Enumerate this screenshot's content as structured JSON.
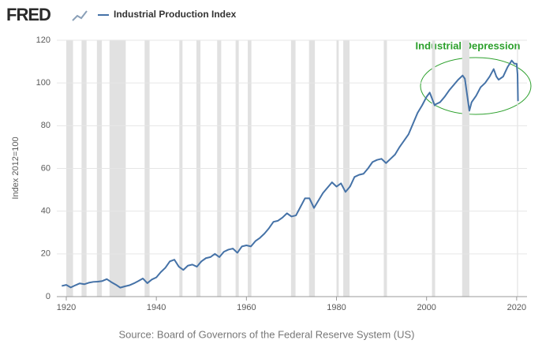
{
  "chart_data": {
    "type": "line",
    "logo": "FRED",
    "y_label": "Index 2012=100",
    "source": "Source: Board of Governors of the Federal Reserve System (US)",
    "annotation": "Industrial Depression",
    "xlim": [
      1917.9,
      2022.3
    ],
    "xticks": [
      1920,
      1940,
      1960,
      1980,
      2000,
      2020
    ],
    "ylim": [
      0,
      120
    ],
    "yticks": [
      0,
      20,
      40,
      60,
      80,
      100,
      120
    ],
    "grid": true,
    "shade_color": "#e1e1e1",
    "shaded_periods": [
      [
        1920.0,
        1921.5
      ],
      [
        1923.4,
        1924.5
      ],
      [
        1926.8,
        1927.9
      ],
      [
        1929.6,
        1933.2
      ],
      [
        1937.4,
        1938.5
      ],
      [
        1945.1,
        1945.8
      ],
      [
        1948.9,
        1949.8
      ],
      [
        1953.5,
        1954.4
      ],
      [
        1957.6,
        1958.3
      ],
      [
        1960.3,
        1961.1
      ],
      [
        1969.9,
        1970.9
      ],
      [
        1973.9,
        1975.2
      ],
      [
        1980.0,
        1980.5
      ],
      [
        1981.5,
        1982.9
      ],
      [
        1990.5,
        1991.2
      ],
      [
        2001.2,
        2001.9
      ],
      [
        2007.9,
        2009.5
      ],
      [
        2020.1,
        2020.3
      ]
    ],
    "x": [
      1919,
      1920,
      1921,
      1922,
      1923,
      1924,
      1925,
      1926,
      1927,
      1928,
      1929,
      1930,
      1931,
      1932,
      1933,
      1934,
      1935,
      1936,
      1937,
      1938,
      1939,
      1940,
      1941,
      1942,
      1943,
      1944,
      1945,
      1946,
      1947,
      1948,
      1949,
      1950,
      1951,
      1952,
      1953,
      1954,
      1955,
      1956,
      1957,
      1958,
      1959,
      1960,
      1961,
      1962,
      1963,
      1964,
      1965,
      1966,
      1967,
      1968,
      1969,
      1970,
      1971,
      1972,
      1973,
      1974,
      1975,
      1976,
      1977,
      1978,
      1979,
      1980,
      1981,
      1982,
      1983,
      1984,
      1985,
      1986,
      1987,
      1988,
      1989,
      1990,
      1991,
      1992,
      1993,
      1994,
      1995,
      1996,
      1997,
      1998,
      1999,
      2000,
      2000.7,
      2001.8,
      2002,
      2003,
      2004,
      2005,
      2006,
      2007,
      2008,
      2008.5,
      2009.5,
      2010,
      2011,
      2012,
      2013,
      2014,
      2014.9,
      2015.5,
      2016,
      2017,
      2018,
      2018.9,
      2019.5,
      2020,
      2020.2,
      2020.3
    ],
    "series": [
      {
        "name": "Industrial Production Index",
        "color": "#4572a7",
        "values": [
          5,
          5.5,
          4.3,
          5.3,
          6.2,
          5.8,
          6.5,
          6.9,
          7,
          7.3,
          8.2,
          6.8,
          5.6,
          4.2,
          4.8,
          5.3,
          6.2,
          7.3,
          8.5,
          6.3,
          8,
          9,
          11.5,
          13.5,
          16.5,
          17.3,
          14,
          12.5,
          14.5,
          15,
          14,
          16.5,
          18,
          18.5,
          20,
          18.5,
          21,
          22,
          22.5,
          20.5,
          23.5,
          24,
          23.5,
          26,
          27.5,
          29.5,
          32,
          35,
          35.5,
          37,
          39,
          37.5,
          38,
          42,
          46,
          46,
          41.5,
          45,
          48.5,
          51,
          53.5,
          51.5,
          53,
          49,
          51.5,
          56,
          57,
          57.5,
          60,
          63,
          64,
          64.5,
          62.5,
          64.5,
          66.5,
          70,
          73,
          76,
          81,
          86,
          89.5,
          93.5,
          95.5,
          89.5,
          90,
          91,
          93.5,
          96.5,
          99,
          101.5,
          103.5,
          102,
          87,
          91,
          94,
          98,
          100,
          103,
          106.5,
          103,
          101.5,
          103,
          107.5,
          110.5,
          109,
          109,
          104,
          91.5
        ]
      }
    ]
  }
}
